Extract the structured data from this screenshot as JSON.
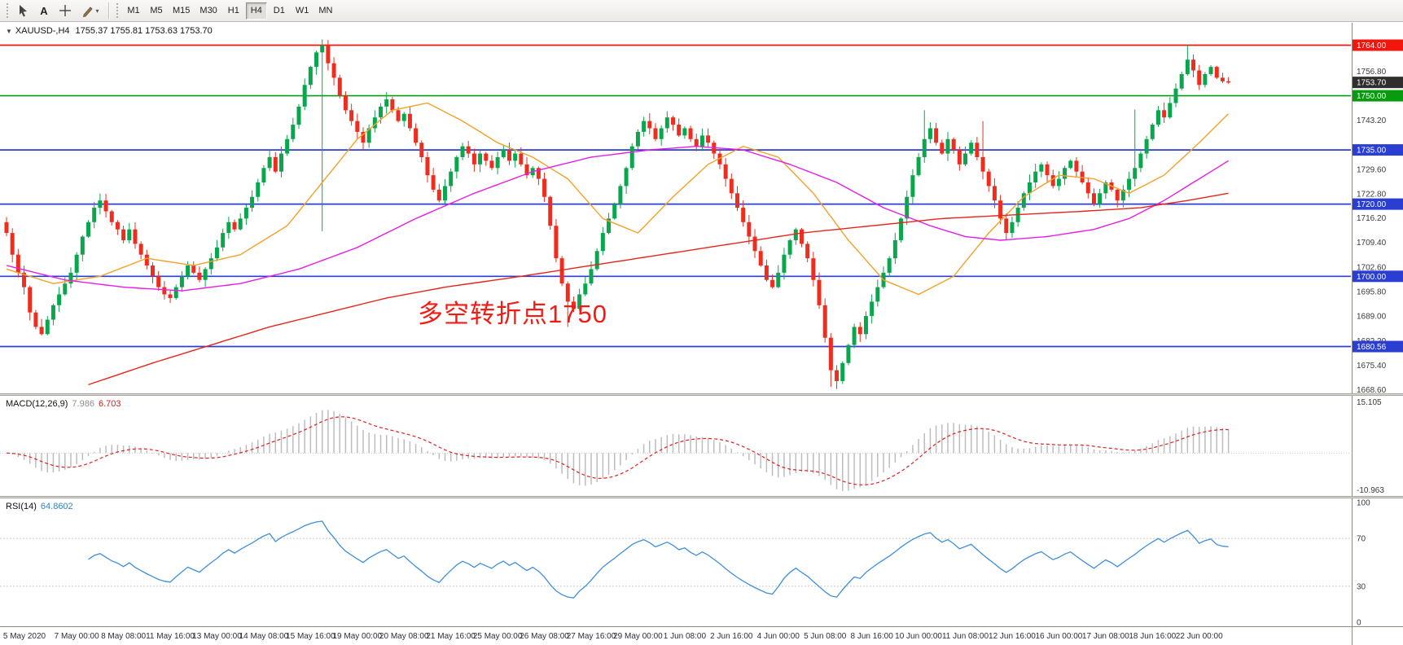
{
  "toolbar": {
    "text_tool_label": "A",
    "tool_icons": [
      "cursor-icon",
      "text-tool-icon",
      "crosshair-icon",
      "pencil-icon",
      "chevron-down-icon"
    ],
    "timeframes": [
      {
        "label": "M1"
      },
      {
        "label": "M5"
      },
      {
        "label": "M15"
      },
      {
        "label": "M30"
      },
      {
        "label": "H1"
      },
      {
        "label": "H4",
        "active": true
      },
      {
        "label": "D1"
      },
      {
        "label": "W1"
      },
      {
        "label": "MN"
      }
    ]
  },
  "chart": {
    "collapse_icon": "▼",
    "title": "XAUUSD-,H4",
    "ohlc": "1755.37 1755.81 1753.63 1753.70",
    "annotation": "多空转折点1750"
  },
  "macd_panel": {
    "label": "MACD(12,26,9)",
    "value1": "7.986",
    "value2": "6.703",
    "scale_top": "15.105",
    "scale_bottom": "-10.963"
  },
  "rsi_panel": {
    "label": "RSI(14)",
    "value": "64.8602",
    "scale": [
      "100",
      "70",
      "30",
      "0"
    ]
  },
  "chart_data": {
    "type": "candlestick",
    "symbol": "XAUUSD",
    "timeframe": "H4",
    "ohlc_current": {
      "open": 1755.37,
      "high": 1755.81,
      "low": 1753.63,
      "close": 1753.7
    },
    "ylim": [
      1667.6,
      1770.2
    ],
    "up_color": "#0aa64e",
    "down_color": "#ef2c1e",
    "closes": [
      1712,
      1706,
      1701,
      1697,
      1690,
      1686,
      1684,
      1688,
      1692,
      1695,
      1698,
      1701,
      1706,
      1711,
      1715,
      1719,
      1721,
      1718,
      1715,
      1713,
      1710,
      1713,
      1709,
      1706,
      1703,
      1700,
      1697,
      1695,
      1694,
      1697,
      1700,
      1703,
      1701,
      1699,
      1702,
      1705,
      1708,
      1712,
      1715,
      1713,
      1716,
      1719,
      1722,
      1726,
      1730,
      1733,
      1729,
      1734,
      1738,
      1742,
      1747,
      1753,
      1758,
      1762,
      1764,
      1759,
      1755,
      1750,
      1746,
      1743,
      1740,
      1737,
      1741,
      1744,
      1747,
      1749,
      1746,
      1743,
      1745,
      1741,
      1737,
      1733,
      1728,
      1724,
      1721,
      1725,
      1729,
      1733,
      1736,
      1734,
      1731,
      1734,
      1732,
      1730,
      1733,
      1735,
      1732,
      1734,
      1731,
      1728,
      1730,
      1727,
      1722,
      1714,
      1705,
      1698,
      1693,
      1691,
      1695,
      1698,
      1702,
      1707,
      1712,
      1716,
      1720,
      1725,
      1730,
      1736,
      1740,
      1743,
      1741,
      1738,
      1741,
      1744,
      1742,
      1739,
      1741,
      1738,
      1736,
      1739,
      1737,
      1734,
      1731,
      1727,
      1723,
      1719,
      1715,
      1711,
      1707,
      1703,
      1699,
      1697,
      1701,
      1706,
      1710,
      1713,
      1709,
      1705,
      1699,
      1692,
      1683,
      1674,
      1671,
      1676,
      1681,
      1686,
      1684,
      1689,
      1693,
      1697,
      1701,
      1705,
      1710,
      1716,
      1722,
      1728,
      1733,
      1738,
      1741,
      1737,
      1734,
      1738,
      1735,
      1731,
      1734,
      1737,
      1733,
      1729,
      1725,
      1721,
      1716,
      1712,
      1715,
      1719,
      1723,
      1726,
      1729,
      1731,
      1728,
      1725,
      1727,
      1730,
      1732,
      1729,
      1726,
      1723,
      1720,
      1723,
      1726,
      1724,
      1721,
      1724,
      1727,
      1730,
      1734,
      1738,
      1742,
      1746,
      1744,
      1748,
      1752,
      1756,
      1760,
      1757,
      1753,
      1756,
      1758,
      1755,
      1754,
      1753.7
    ],
    "wick_overrides": {
      "highs": {
        "54": 1765.6,
        "157": 1746.0,
        "167": 1743.0,
        "193": 1746.2,
        "202": 1764.1
      },
      "lows": {
        "54": 1712.5,
        "96": 1686.0,
        "141": 1669.4,
        "142": 1668.8
      }
    },
    "hlines": [
      {
        "price": 1764.0,
        "color": "#f4150c",
        "tag": "1764.00"
      },
      {
        "price": 1750.0,
        "color": "#089b10",
        "tag": "1750.00"
      },
      {
        "price": 1735.0,
        "color": "#2b3ed2",
        "tag": "1735.00"
      },
      {
        "price": 1720.0,
        "color": "#2b3ed2",
        "tag": "1720.00"
      },
      {
        "price": 1700.0,
        "color": "#2b3ed2",
        "tag": "1700.00"
      },
      {
        "price": 1680.56,
        "color": "#2b3ed2",
        "tag": "1680.56"
      }
    ],
    "current_price_tag": {
      "price": 1753.7,
      "label": "1753.70",
      "bg": "#2e2e2e"
    },
    "axis_ticks": [
      "1756.80",
      "1743.20",
      "1729.60",
      "1722.80",
      "1716.20",
      "1709.40",
      "1702.60",
      "1695.80",
      "1689.00",
      "1682.20",
      "1675.40",
      "1668.60"
    ],
    "overlays": [
      {
        "name": "ma-orange-line",
        "color": "#f2a229",
        "anchors": [
          [
            0,
            1702
          ],
          [
            8,
            1698
          ],
          [
            16,
            1700
          ],
          [
            24,
            1705
          ],
          [
            32,
            1703
          ],
          [
            40,
            1706
          ],
          [
            48,
            1714
          ],
          [
            54,
            1726
          ],
          [
            60,
            1738
          ],
          [
            66,
            1746
          ],
          [
            72,
            1748
          ],
          [
            78,
            1743
          ],
          [
            84,
            1737
          ],
          [
            90,
            1733
          ],
          [
            96,
            1727
          ],
          [
            102,
            1716
          ],
          [
            108,
            1712
          ],
          [
            114,
            1722
          ],
          [
            120,
            1731
          ],
          [
            126,
            1736
          ],
          [
            132,
            1733
          ],
          [
            138,
            1723
          ],
          [
            144,
            1710
          ],
          [
            150,
            1699
          ],
          [
            156,
            1695
          ],
          [
            162,
            1700
          ],
          [
            168,
            1712
          ],
          [
            174,
            1722
          ],
          [
            180,
            1728
          ],
          [
            186,
            1727
          ],
          [
            192,
            1723
          ],
          [
            198,
            1728
          ],
          [
            204,
            1737
          ],
          [
            209,
            1745
          ]
        ]
      },
      {
        "name": "ma-magenta-line",
        "color": "#e61ee6",
        "anchors": [
          [
            0,
            1703
          ],
          [
            10,
            1699
          ],
          [
            20,
            1697
          ],
          [
            30,
            1696
          ],
          [
            40,
            1698
          ],
          [
            50,
            1702
          ],
          [
            60,
            1708
          ],
          [
            70,
            1716
          ],
          [
            80,
            1723
          ],
          [
            90,
            1729
          ],
          [
            100,
            1733
          ],
          [
            110,
            1735
          ],
          [
            118,
            1736
          ],
          [
            126,
            1735
          ],
          [
            134,
            1731
          ],
          [
            142,
            1726
          ],
          [
            150,
            1719
          ],
          [
            158,
            1714
          ],
          [
            164,
            1711
          ],
          [
            170,
            1710
          ],
          [
            178,
            1711
          ],
          [
            186,
            1713
          ],
          [
            192,
            1716
          ],
          [
            198,
            1721
          ],
          [
            204,
            1727
          ],
          [
            209,
            1732
          ]
        ]
      },
      {
        "name": "ma-red-line",
        "color": "#e4271c",
        "anchors": [
          [
            14,
            1670
          ],
          [
            25,
            1676
          ],
          [
            35,
            1681
          ],
          [
            45,
            1686
          ],
          [
            55,
            1690
          ],
          [
            65,
            1694
          ],
          [
            75,
            1697
          ],
          [
            88,
            1700
          ],
          [
            100,
            1703
          ],
          [
            112,
            1706
          ],
          [
            124,
            1709
          ],
          [
            136,
            1712
          ],
          [
            148,
            1714
          ],
          [
            160,
            1716
          ],
          [
            172,
            1717
          ],
          [
            184,
            1718
          ],
          [
            194,
            1719
          ],
          [
            202,
            1721
          ],
          [
            209,
            1723
          ]
        ]
      }
    ],
    "macd": {
      "hist_color": "#bdbdbd",
      "signal_color": "#e02020",
      "ymax": 15.105,
      "ymin": -10.963
    },
    "rsi": {
      "line_color": "#3f8fd9",
      "levels_dashed": [
        70,
        30
      ]
    },
    "time_labels": [
      "5 May 2020",
      "7 May 00:00",
      "8 May 08:00",
      "11 May 16:00",
      "13 May 00:00",
      "14 May 08:00",
      "15 May 16:00",
      "19 May 00:00",
      "20 May 08:00",
      "21 May 16:00",
      "25 May 00:00",
      "26 May 08:00",
      "27 May 16:00",
      "29 May 00:00",
      "1 Jun 08:00",
      "2 Jun 16:00",
      "4 Jun 00:00",
      "5 Jun 08:00",
      "8 Jun 16:00",
      "10 Jun 00:00",
      "11 Jun 08:00",
      "12 Jun 16:00",
      "16 Jun 00:00",
      "17 Jun 08:00",
      "18 Jun 16:00",
      "22 Jun 00:00"
    ],
    "label_indices": [
      0,
      12,
      20,
      28,
      36,
      44,
      52,
      60,
      68,
      76,
      84,
      92,
      100,
      108,
      116,
      124,
      132,
      140,
      148,
      156,
      164,
      172,
      180,
      188,
      196,
      204
    ]
  }
}
